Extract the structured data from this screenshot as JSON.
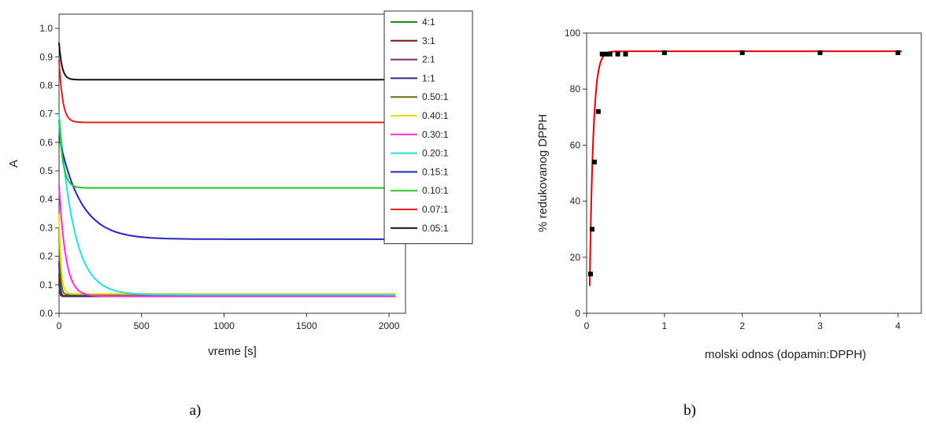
{
  "chart_data": [
    {
      "type": "line",
      "panel_label": "a)",
      "title": "",
      "xlabel": "vreme [s]",
      "ylabel": "A",
      "xlim": [
        0,
        2100
      ],
      "ylim": [
        0,
        1.05
      ],
      "xticks": [
        "0",
        "500",
        "1000",
        "1500",
        "2000"
      ],
      "yticks": [
        "0.0",
        "0.1",
        "0.2",
        "0.3",
        "0.4",
        "0.5",
        "0.6",
        "0.7",
        "0.8",
        "0.9",
        "1.0"
      ],
      "grid": false,
      "legend": "right",
      "x_end": 2050,
      "series": [
        {
          "name": "4:1",
          "color": "#1a8c1a",
          "start": 0.11,
          "plateau": 0.06,
          "tau": 4
        },
        {
          "name": "3:1",
          "color": "#7a1010",
          "start": 0.12,
          "plateau": 0.06,
          "tau": 4
        },
        {
          "name": "2:1",
          "color": "#7b2a7b",
          "start": 0.14,
          "plateau": 0.06,
          "tau": 5
        },
        {
          "name": "1:1",
          "color": "#2b2b80",
          "start": 0.18,
          "plateau": 0.06,
          "tau": 6
        },
        {
          "name": "0.50:1",
          "color": "#6b6b10",
          "start": 0.3,
          "plateau": 0.065,
          "tau": 8
        },
        {
          "name": "0.40:1",
          "color": "#e0e000",
          "start": 0.35,
          "plateau": 0.068,
          "tau": 12
        },
        {
          "name": "0.30:1",
          "color": "#ff2bd6",
          "start": 0.45,
          "plateau": 0.06,
          "tau": 40
        },
        {
          "name": "0.20:1",
          "color": "#22e0e0",
          "start": 0.7,
          "plateau": 0.065,
          "tau": 90
        },
        {
          "name": "0.15:1",
          "color": "#2323c8",
          "start": 0.62,
          "plateau": 0.26,
          "tau": 130
        },
        {
          "name": "0.10:1",
          "color": "#22cc22",
          "start": 0.68,
          "plateau": 0.44,
          "tau": 25
        },
        {
          "name": "0.07:1",
          "color": "#e02020",
          "start": 0.89,
          "plateau": 0.67,
          "tau": 22
        },
        {
          "name": "0.05:1",
          "color": "#111111",
          "start": 0.95,
          "plateau": 0.82,
          "tau": 18
        }
      ]
    },
    {
      "type": "scatter",
      "panel_label": "b)",
      "title": "",
      "xlabel": "molski odnos (dopamin:DPPH)",
      "ylabel": "% redukovanog DPPH",
      "xlim": [
        0,
        4.3
      ],
      "ylim": [
        0,
        100
      ],
      "xticks": [
        "0",
        "1",
        "2",
        "3",
        "4"
      ],
      "yticks": [
        "0",
        "20",
        "40",
        "60",
        "80",
        "100"
      ],
      "grid": false,
      "points_color": "#000000",
      "fit_color": "#e00000",
      "points": [
        {
          "x": 0.05,
          "y": 14
        },
        {
          "x": 0.07,
          "y": 30
        },
        {
          "x": 0.1,
          "y": 54
        },
        {
          "x": 0.15,
          "y": 72
        },
        {
          "x": 0.2,
          "y": 92.5
        },
        {
          "x": 0.25,
          "y": 92.5
        },
        {
          "x": 0.3,
          "y": 92.5
        },
        {
          "x": 0.4,
          "y": 92.5
        },
        {
          "x": 0.5,
          "y": 92.5
        },
        {
          "x": 1,
          "y": 93
        },
        {
          "x": 2,
          "y": 93
        },
        {
          "x": 3,
          "y": 93
        },
        {
          "x": 4,
          "y": 93
        }
      ],
      "fit": {
        "plateau": 93.5,
        "x0": 0.035,
        "k": 22
      }
    }
  ]
}
